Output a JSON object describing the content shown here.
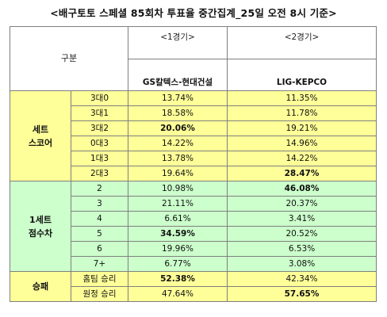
{
  "title": "<배구토토 스페셜 85회차 투표율 중간집계_25일 오전 8시 기준>",
  "header": {
    "gubun": "구분",
    "match1_label": "<1경기>",
    "match2_label": "<2경기>",
    "match1_team": "GS칼텍스-현대건설",
    "match2_team": "LIG-KEPCO"
  },
  "groups": [
    {
      "name_line1": "세트",
      "name_line2": "스코어",
      "rows": [
        {
          "option": "3대0",
          "m1": "13.74%",
          "m2": "11.35%",
          "m1_bold": false,
          "m2_bold": false
        },
        {
          "option": "3대1",
          "m1": "18.58%",
          "m2": "11.78%",
          "m1_bold": false,
          "m2_bold": false
        },
        {
          "option": "3대2",
          "m1": "20.06%",
          "m2": "19.21%",
          "m1_bold": true,
          "m2_bold": false
        },
        {
          "option": "0대3",
          "m1": "14.22%",
          "m2": "14.96%",
          "m1_bold": false,
          "m2_bold": false
        },
        {
          "option": "1대3",
          "m1": "13.78%",
          "m2": "14.22%",
          "m1_bold": false,
          "m2_bold": false
        },
        {
          "option": "2대3",
          "m1": "19.64%",
          "m2": "28.47%",
          "m1_bold": false,
          "m2_bold": true
        }
      ]
    },
    {
      "name_line1": "1세트",
      "name_line2": "점수차",
      "rows": [
        {
          "option": "2",
          "m1": "10.98%",
          "m2": "46.08%",
          "m1_bold": false,
          "m2_bold": true
        },
        {
          "option": "3",
          "m1": "21.11%",
          "m2": "20.37%",
          "m1_bold": false,
          "m2_bold": false
        },
        {
          "option": "4",
          "m1": "6.61%",
          "m2": "3.41%",
          "m1_bold": false,
          "m2_bold": false
        },
        {
          "option": "5",
          "m1": "34.59%",
          "m2": "20.52%",
          "m1_bold": true,
          "m2_bold": false
        },
        {
          "option": "6",
          "m1": "19.96%",
          "m2": "6.53%",
          "m1_bold": false,
          "m2_bold": false
        },
        {
          "option": "7+",
          "m1": "6.77%",
          "m2": "3.08%",
          "m1_bold": false,
          "m2_bold": false
        }
      ]
    },
    {
      "name_line1": "승패",
      "name_line2": "",
      "rows": [
        {
          "option": "홈팀 승리",
          "m1": "52.38%",
          "m2": "42.34%",
          "m1_bold": true,
          "m2_bold": false
        },
        {
          "option": "원정 승리",
          "m1": "47.64%",
          "m2": "57.65%",
          "m1_bold": false,
          "m2_bold": true
        }
      ]
    }
  ],
  "colors": {
    "group_set_score": "#ffff99",
    "group_point_diff": "#ccffcc",
    "group_win_loss": "#ffff99",
    "border": "#7f7f7f"
  }
}
